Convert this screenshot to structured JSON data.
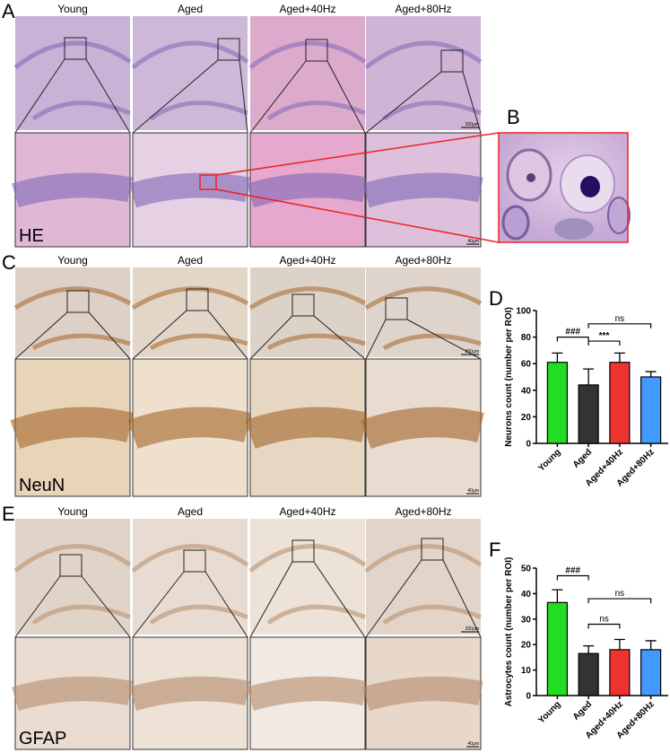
{
  "figure": {
    "panel_labels": [
      "A",
      "B",
      "C",
      "D",
      "E",
      "F"
    ],
    "columns": [
      "Young",
      "Aged",
      "Aged+40Hz",
      "Aged+80Hz"
    ],
    "stains": [
      "HE",
      "NeuN",
      "GFAP"
    ],
    "scale_bars": [
      "200μm",
      "40μm"
    ]
  },
  "chart_data": [
    {
      "type": "bar",
      "ylabel": "Neurons count (number per ROI)",
      "categories": [
        "Young",
        "Aged",
        "Aged+40Hz",
        "Aged+80Hz"
      ],
      "values": [
        61,
        44,
        61,
        50
      ],
      "errors": [
        7,
        12,
        7,
        4
      ],
      "colors": [
        "#22dd22",
        "#333333",
        "#ee3333",
        "#4499ff"
      ],
      "ylim": [
        0,
        100
      ],
      "yticks": [
        0,
        20,
        40,
        60,
        80,
        100
      ],
      "annotations": [
        "###",
        "***",
        "ns"
      ]
    },
    {
      "type": "bar",
      "ylabel": "Astrocytes count (number per ROI)",
      "categories": [
        "Young",
        "Aged",
        "Aged+40Hz",
        "Aged+80Hz"
      ],
      "values": [
        36.5,
        16.5,
        18,
        18
      ],
      "errors": [
        5,
        3,
        4,
        3.5
      ],
      "colors": [
        "#22dd22",
        "#333333",
        "#ee3333",
        "#4499ff"
      ],
      "ylim": [
        0,
        50
      ],
      "yticks": [
        0,
        10,
        20,
        30,
        40,
        50
      ],
      "annotations": [
        "###",
        "ns",
        "ns"
      ]
    }
  ]
}
